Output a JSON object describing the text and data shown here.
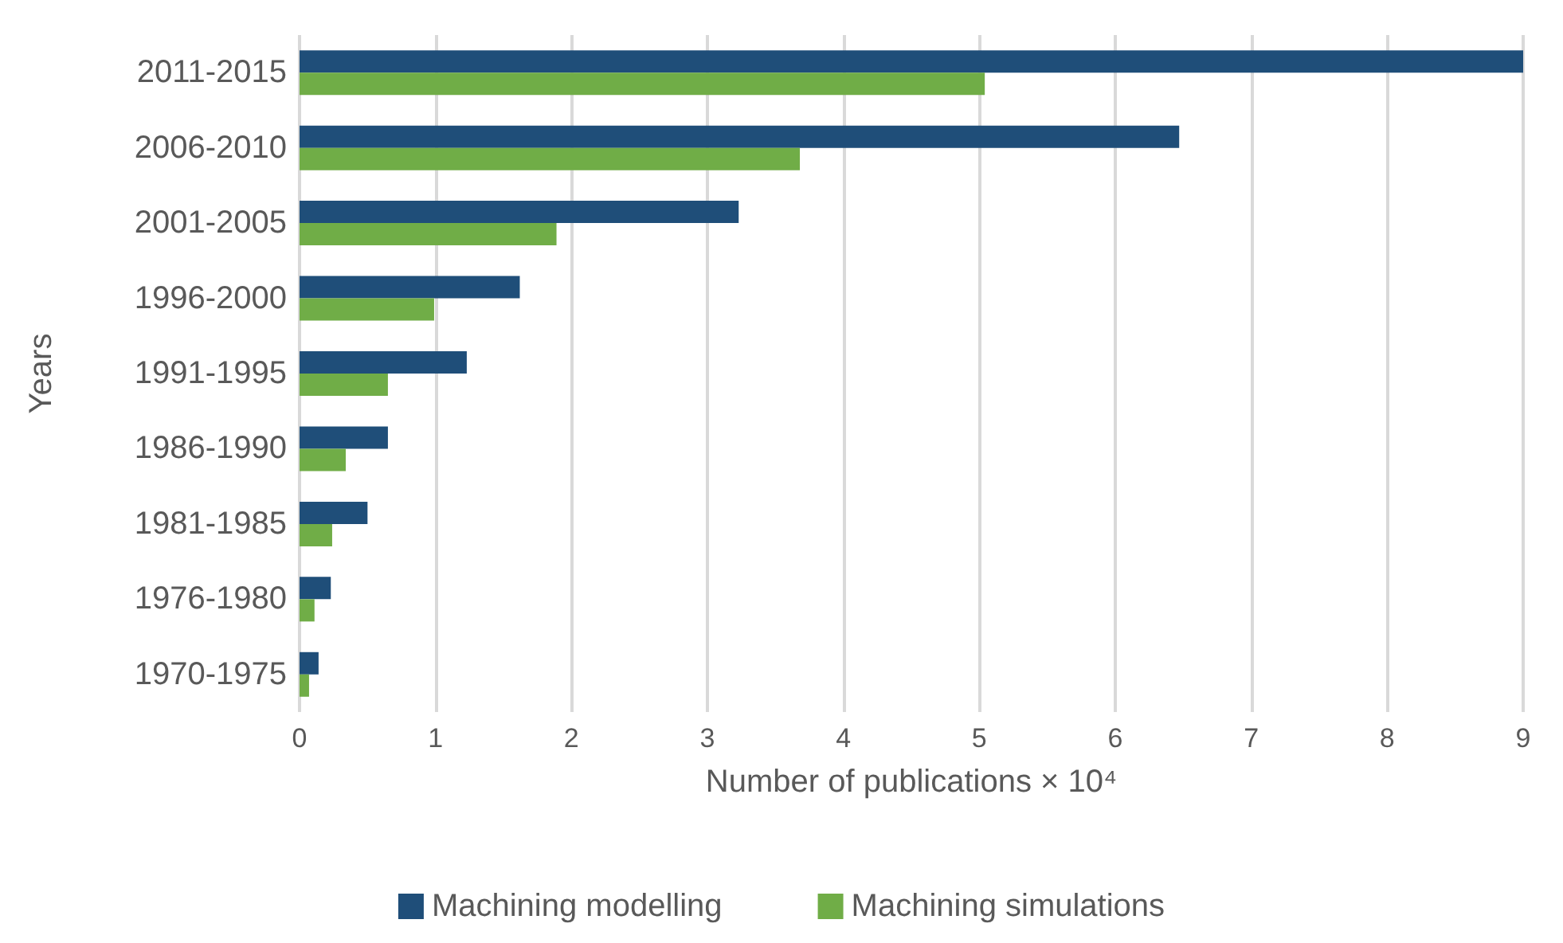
{
  "chart_data": {
    "type": "bar",
    "orientation": "horizontal",
    "xlabel": "Number of publications × 10⁴",
    "ylabel": "Years",
    "categories": [
      "2011-2015",
      "2006-2010",
      "2001-2005",
      "1996-2000",
      "1991-1995",
      "1986-1990",
      "1981-1985",
      "1976-1980",
      "1970-1975"
    ],
    "series": [
      {
        "name": "Machining modelling",
        "color": "#1f4e79",
        "values": [
          9.0,
          6.47,
          3.23,
          1.62,
          1.23,
          0.65,
          0.5,
          0.23,
          0.14
        ]
      },
      {
        "name": "Machining simulations",
        "color": "#70ad47",
        "values": [
          5.04,
          3.68,
          1.89,
          0.99,
          0.65,
          0.34,
          0.24,
          0.11,
          0.07
        ]
      }
    ],
    "xlim": [
      0,
      9
    ],
    "xticks": [
      0,
      1,
      2,
      3,
      4,
      5,
      6,
      7,
      8,
      9
    ],
    "grid": "x",
    "legend": "bottom"
  }
}
